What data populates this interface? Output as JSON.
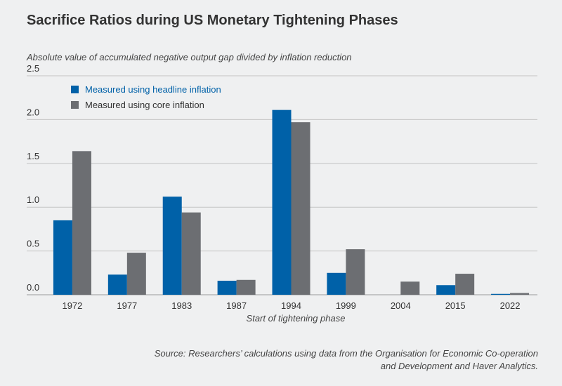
{
  "chart_data": {
    "type": "bar",
    "title": "Sacrifice Ratios during US Monetary Tightening Phases",
    "subtitle": "Absolute value of accumulated negative output gap divided by inflation reduction",
    "xlabel": "Start of tightening phase",
    "ylabel": "",
    "ylim": [
      0,
      2.5
    ],
    "yticks": [
      "0.0",
      "0.5",
      "1.0",
      "1.5",
      "2.0",
      "2.5"
    ],
    "grid": true,
    "legend_position": "top-left",
    "categories": [
      "1972",
      "1977",
      "1983",
      "1987",
      "1994",
      "1999",
      "2004",
      "2015",
      "2022"
    ],
    "series": [
      {
        "name": "Measured using headline inflation",
        "color": "#0061a8",
        "values": [
          0.85,
          0.23,
          1.12,
          0.16,
          2.11,
          0.25,
          0,
          0.11,
          0.01
        ]
      },
      {
        "name": "Measured using core inflation",
        "color": "#6c6e72",
        "values": [
          1.64,
          0.48,
          0.94,
          0.17,
          1.97,
          0.52,
          0.15,
          0.24,
          0.02
        ]
      }
    ],
    "source": "Source: Researchers’ calculations using data from the Organisation for Economic Co-operation and Development and Haver Analytics."
  }
}
